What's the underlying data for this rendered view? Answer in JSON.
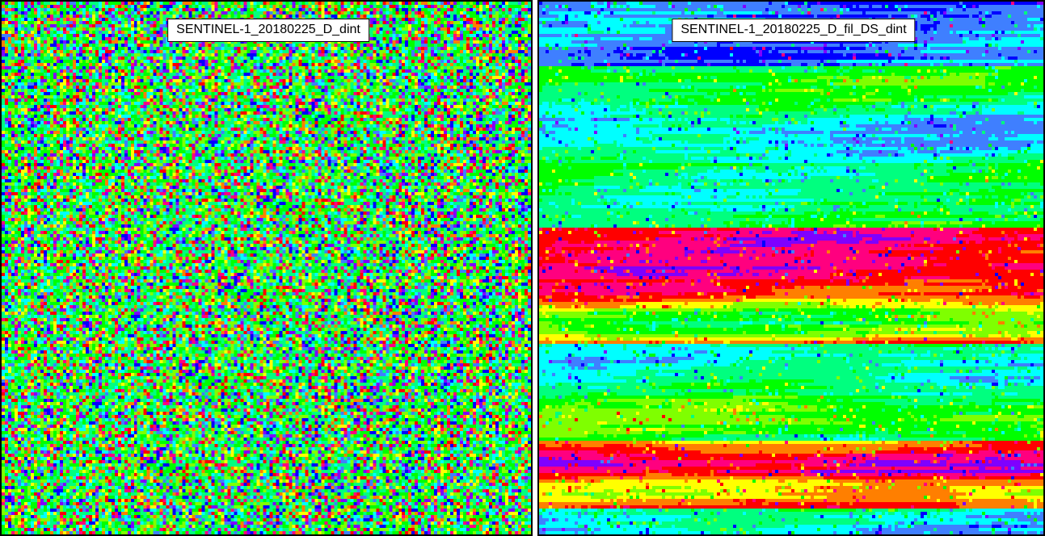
{
  "panels": [
    {
      "id": "left",
      "label": "SENTINEL-1_20180225_D_dint",
      "pattern": "noisy"
    },
    {
      "id": "right",
      "label": "SENTINEL-1_20180225_D_fil_DS_dint",
      "pattern": "filtered-streaks"
    }
  ],
  "colormap": [
    "#0000ff",
    "#3f7fff",
    "#00ffff",
    "#00ff7f",
    "#00ff00",
    "#7fff00",
    "#ffff00",
    "#ff7f00",
    "#ff0000",
    "#ff007f",
    "#7f00ff"
  ]
}
